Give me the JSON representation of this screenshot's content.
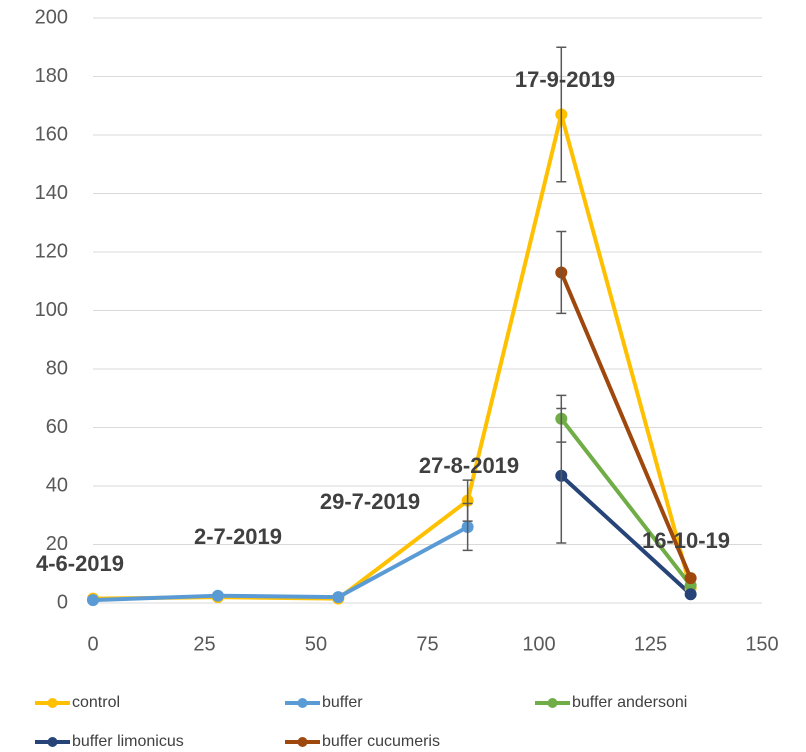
{
  "chart_data": {
    "type": "line",
    "x": [
      0,
      28,
      55,
      84,
      105,
      134
    ],
    "xlim": [
      0,
      150
    ],
    "xticks": [
      0,
      25,
      50,
      75,
      100,
      125,
      150
    ],
    "ylim": [
      0,
      200
    ],
    "yticks": [
      0,
      20,
      40,
      60,
      80,
      100,
      120,
      140,
      160,
      180,
      200
    ],
    "grid": true,
    "annotations": [
      "4-6-2019",
      "2-7-2019",
      "29-7-2019",
      "27-8-2019",
      "17-9-2019",
      "16-10-19"
    ],
    "series": [
      {
        "name": "control",
        "color": "#FFC000",
        "values": [
          1.5,
          2,
          1.5,
          35,
          167,
          5
        ],
        "errors": [
          null,
          null,
          null,
          7,
          23,
          null
        ]
      },
      {
        "name": "buffer",
        "color": "#5B9BD5",
        "values": [
          1,
          2.5,
          2,
          26,
          null,
          null
        ],
        "errors": [
          null,
          null,
          null,
          8,
          null,
          null
        ]
      },
      {
        "name": "buffer andersoni",
        "color": "#70AD47",
        "values": [
          null,
          null,
          null,
          null,
          63,
          6
        ],
        "errors": [
          null,
          null,
          null,
          null,
          8,
          null
        ]
      },
      {
        "name": "buffer limonicus",
        "color": "#264478",
        "values": [
          null,
          null,
          null,
          null,
          43.5,
          3
        ],
        "errors": [
          null,
          null,
          null,
          null,
          23,
          null
        ]
      },
      {
        "name": "buffer cucumeris",
        "color": "#9E480E",
        "values": [
          null,
          null,
          null,
          null,
          113,
          8.5
        ],
        "errors": [
          null,
          null,
          null,
          null,
          14,
          null
        ]
      }
    ]
  }
}
